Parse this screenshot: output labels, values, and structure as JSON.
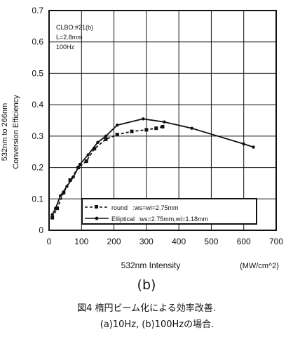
{
  "chart_data": {
    "type": "line",
    "xlabel": "532nm Intensity",
    "xunit": "(MW/cm^2)",
    "ylabel_lines": [
      "532nm to 266nm",
      "Conversion  Efficiency"
    ],
    "xlim": [
      0,
      700
    ],
    "ylim": [
      0,
      0.7
    ],
    "xticks": [
      "0",
      "100",
      "200",
      "300",
      "400",
      "500",
      "600",
      "700"
    ],
    "yticks": [
      "0",
      "0.1",
      "0.2",
      "0.3",
      "0.4",
      "0.5",
      "0.6",
      "0.7"
    ],
    "grid": true,
    "annotation": [
      "CLBO:#21(b)",
      "L=2.8mm",
      "100Hz"
    ],
    "series": [
      {
        "name": "round   :ws=wi=2.75mm",
        "style": "dashed-square",
        "x": [
          10,
          25,
          45,
          65,
          90,
          115,
          140,
          175,
          210,
          255,
          300,
          330,
          350
        ],
        "y": [
          0.04,
          0.07,
          0.12,
          0.16,
          0.2,
          0.22,
          0.26,
          0.29,
          0.305,
          0.315,
          0.32,
          0.325,
          0.33
        ]
      },
      {
        "name": "Elliptical  :ws=2.75mm,wi=1.18mm",
        "style": "solid-dot",
        "x": [
          10,
          20,
          35,
          55,
          75,
          95,
          120,
          150,
          175,
          210,
          290,
          355,
          440,
          600,
          630
        ],
        "y": [
          0.05,
          0.07,
          0.11,
          0.14,
          0.17,
          0.21,
          0.24,
          0.28,
          0.3,
          0.335,
          0.355,
          0.345,
          0.325,
          0.275,
          0.265
        ]
      }
    ]
  },
  "figure": {
    "subfigure_label": "(b)",
    "caption_line1": "図4 楕円ビーム化による効率改善.",
    "caption_line2": "(a)10Hz, (b)100Hzの場合."
  }
}
